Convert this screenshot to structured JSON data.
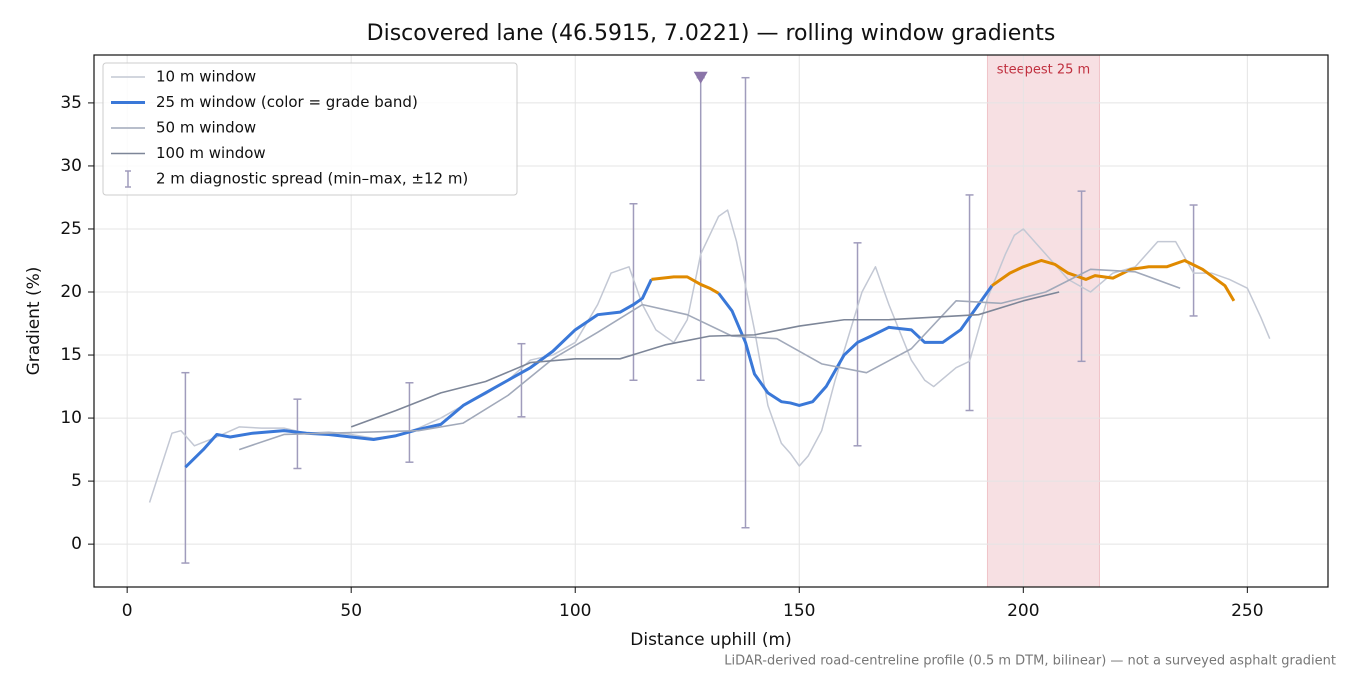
{
  "chart_data": {
    "type": "line",
    "title": "Discovered lane (46.5915, 7.0221) — rolling window gradients",
    "xlabel": "Distance uphill (m)",
    "ylabel": "Gradient (%)",
    "footnote": "LiDAR-derived road-centreline profile (0.5 m DTM, bilinear) — not a surveyed asphalt gradient",
    "xlim": [
      -7.4,
      268
    ],
    "ylim": [
      -3.4,
      38.8
    ],
    "xticks": [
      0,
      50,
      100,
      150,
      200,
      250
    ],
    "yticks": [
      0,
      5,
      10,
      15,
      20,
      25,
      30,
      35
    ],
    "grid": true,
    "legend": "upper left",
    "highlight": {
      "label": "steepest 25 m",
      "start": 192,
      "end": 217,
      "color": "#e8a6ae",
      "label_color": "#c0303f"
    },
    "series": [
      {
        "name": "10 m window",
        "color": "#c3c8d4",
        "width": 1.5,
        "x": [
          5,
          10,
          12,
          15,
          20,
          25,
          30,
          35,
          40,
          45,
          50,
          55,
          60,
          65,
          70,
          75,
          80,
          85,
          90,
          95,
          100,
          105,
          108,
          112,
          115,
          118,
          122,
          125,
          128,
          130,
          132,
          134,
          136,
          140,
          143,
          146,
          148,
          150,
          152,
          155,
          158,
          161,
          164,
          167,
          170,
          175,
          178,
          180,
          185,
          188,
          192,
          196,
          198,
          200,
          205,
          210,
          215,
          220,
          225,
          230,
          234,
          238,
          242,
          246,
          250,
          253,
          255
        ],
        "values": [
          3.3,
          8.8,
          9,
          7.8,
          8.5,
          9.3,
          9.2,
          9.2,
          8.8,
          8.9,
          8.7,
          8.4,
          8.6,
          9.2,
          10,
          11,
          11.9,
          13,
          14.6,
          15,
          16,
          19,
          21.5,
          22,
          19,
          17,
          16,
          17.8,
          23,
          24.5,
          26,
          26.5,
          24,
          17,
          11,
          8,
          7.2,
          6.2,
          7,
          9,
          13,
          16.5,
          20,
          22,
          19,
          14.6,
          13,
          12.5,
          14,
          14.5,
          19.5,
          23,
          24.5,
          25,
          23,
          21,
          20,
          21.5,
          22,
          24,
          24,
          21.5,
          21.5,
          21,
          20.3,
          18,
          16.3
        ]
      },
      {
        "name": "25 m window (color = grade band)",
        "color": "#3a78d8",
        "band_color": "#e08a00",
        "band_threshold": 20,
        "width": 3,
        "x": [
          13,
          17,
          20,
          23,
          28,
          35,
          40,
          45,
          50,
          55,
          60,
          65,
          70,
          75,
          80,
          85,
          90,
          95,
          100,
          105,
          110,
          113,
          115,
          117,
          122,
          125,
          128,
          130,
          132,
          135,
          138,
          140,
          143,
          146,
          148,
          150,
          153,
          156,
          160,
          163,
          166,
          170,
          175,
          178,
          182,
          186,
          190,
          193,
          197,
          200,
          204,
          207,
          210,
          214,
          216,
          220,
          224,
          228,
          232,
          236,
          240,
          245,
          247
        ],
        "values": [
          6.1,
          7.5,
          8.7,
          8.5,
          8.8,
          9,
          8.8,
          8.7,
          8.5,
          8.3,
          8.6,
          9.1,
          9.5,
          11,
          12,
          13,
          14,
          15.3,
          17,
          18.2,
          18.4,
          19,
          19.5,
          21,
          21.2,
          21.2,
          20.6,
          20.3,
          19.9,
          18.5,
          16,
          13.5,
          12,
          11.3,
          11.2,
          11,
          11.3,
          12.5,
          15,
          16,
          16.5,
          17.2,
          17,
          16,
          16,
          17,
          19,
          20.5,
          21.5,
          22,
          22.5,
          22.2,
          21.5,
          21,
          21.3,
          21.1,
          21.8,
          22,
          22,
          22.5,
          21.8,
          20.5,
          19.3
        ]
      },
      {
        "name": "50 m window",
        "color": "#a1a9ba",
        "width": 1.6,
        "x": [
          25,
          35,
          45,
          55,
          65,
          75,
          85,
          95,
          105,
          115,
          125,
          135,
          145,
          155,
          165,
          175,
          185,
          195,
          205,
          215,
          225,
          235
        ],
        "values": [
          7.5,
          8.7,
          8.8,
          8.9,
          9,
          9.6,
          11.8,
          14.7,
          16.8,
          19,
          18.2,
          16.5,
          16.3,
          14.3,
          13.6,
          15.5,
          19.3,
          19.1,
          20,
          21.8,
          21.6,
          20.3
        ]
      },
      {
        "name": "100 m window",
        "color": "#7d8698",
        "width": 1.6,
        "x": [
          50,
          60,
          70,
          80,
          90,
          100,
          110,
          120,
          130,
          140,
          150,
          160,
          170,
          180,
          190,
          200,
          208
        ],
        "values": [
          9.3,
          10.6,
          12,
          12.9,
          14.4,
          14.7,
          14.7,
          15.8,
          16.5,
          16.6,
          17.3,
          17.8,
          17.8,
          18,
          18.2,
          19.3,
          20
        ]
      }
    ],
    "error_bars": {
      "name": "2 m diagnostic spread (min–max, ±12 m)",
      "color": "#a09cbc",
      "x": [
        13,
        38,
        63,
        88,
        113,
        128,
        138,
        163,
        188,
        213,
        238
      ],
      "low": [
        -1.5,
        6,
        6.5,
        10.1,
        13,
        13,
        1.3,
        7.8,
        10.6,
        14.5,
        18.1
      ],
      "high": [
        13.6,
        11.5,
        12.8,
        15.9,
        27,
        37,
        37,
        23.9,
        27.7,
        28,
        26.9
      ]
    },
    "clipped_marker": {
      "x": 128,
      "y": 37,
      "color": "#8a74a8"
    }
  }
}
